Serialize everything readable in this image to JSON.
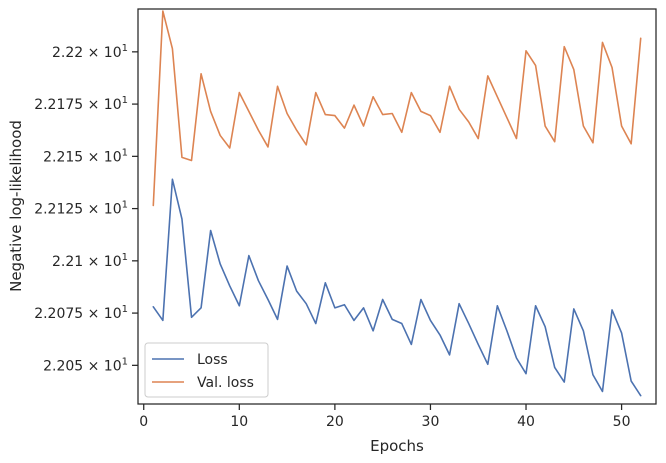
{
  "chart_data": {
    "type": "line",
    "title": "",
    "xlabel": "Epochs",
    "ylabel": "Negative log-likelihood",
    "xlim": [
      -0.6,
      53.6
    ],
    "ylim": [
      22.0315,
      22.2205
    ],
    "x_ticks": [
      0,
      10,
      20,
      30,
      40,
      50
    ],
    "x_tick_labels": [
      "0",
      "10",
      "20",
      "30",
      "40",
      "50"
    ],
    "y_ticks": [
      22.05,
      22.075,
      22.1,
      22.125,
      22.15,
      22.175,
      22.2
    ],
    "y_tick_mantissas": [
      "2.205",
      "2.2075",
      "2.21",
      "2.2125",
      "2.215",
      "2.2175",
      "2.22"
    ],
    "y_tick_base": "10",
    "y_tick_exponent": "1",
    "grid": false,
    "legend_position": "lower-left",
    "colors": {
      "loss": "#4c72b0",
      "val_loss": "#dd8452"
    },
    "x": [
      1,
      2,
      3,
      4,
      5,
      6,
      7,
      8,
      9,
      10,
      11,
      12,
      13,
      14,
      15,
      16,
      17,
      18,
      19,
      20,
      21,
      22,
      23,
      24,
      25,
      26,
      27,
      28,
      29,
      30,
      31,
      32,
      33,
      34,
      35,
      36,
      37,
      38,
      39,
      40,
      41,
      42,
      43,
      44,
      45,
      46,
      47,
      48,
      49,
      50,
      51,
      52
    ],
    "series": [
      {
        "name": "Loss",
        "values": [
          22.078,
          22.0715,
          22.139,
          22.12,
          22.073,
          22.0775,
          22.1145,
          22.0985,
          22.088,
          22.0785,
          22.1025,
          22.0905,
          22.0815,
          22.072,
          22.0975,
          22.0855,
          22.0795,
          22.07,
          22.0895,
          22.0775,
          22.079,
          22.0715,
          22.0775,
          22.0665,
          22.0815,
          22.072,
          22.07,
          22.06,
          22.0815,
          22.0715,
          22.0645,
          22.055,
          22.0795,
          22.07,
          22.06,
          22.0505,
          22.0785,
          22.0665,
          22.0535,
          22.046,
          22.0785,
          22.0685,
          22.049,
          22.042,
          22.077,
          22.0665,
          22.0455,
          22.0375,
          22.0765,
          22.0655,
          22.0425,
          22.0355
        ]
      },
      {
        "name": "Val. loss",
        "values": [
          22.1265,
          22.2195,
          22.2015,
          22.1495,
          22.148,
          22.1895,
          22.1715,
          22.16,
          22.154,
          22.1805,
          22.1715,
          22.1625,
          22.1545,
          22.1835,
          22.1705,
          22.1625,
          22.1555,
          22.1805,
          22.17,
          22.1695,
          22.1635,
          22.1745,
          22.1645,
          22.1785,
          22.17,
          22.1705,
          22.1615,
          22.1805,
          22.1715,
          22.1695,
          22.1615,
          22.1835,
          22.1725,
          22.1665,
          22.1585,
          22.1885,
          22.1785,
          22.1685,
          22.1585,
          22.2005,
          22.1935,
          22.1645,
          22.157,
          22.2025,
          22.1915,
          22.1645,
          22.1565,
          22.2045,
          22.1925,
          22.1645,
          22.156,
          22.2065
        ]
      }
    ]
  }
}
